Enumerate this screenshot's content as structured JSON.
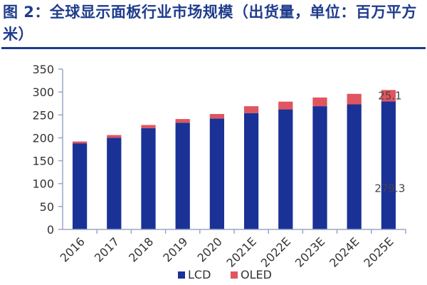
{
  "title": "图 2：全球显示面板行业市场规模（出货量，单位：百万平方米）",
  "colors": {
    "title": "#1f3c8c",
    "lcd": "#1a3196",
    "oled": "#e0555f",
    "axis": "#9aa6c8"
  },
  "chart_data": {
    "type": "bar",
    "stacked": true,
    "categories": [
      "2016",
      "2017",
      "2018",
      "2019",
      "2020",
      "2021E",
      "2022E",
      "2023E",
      "2024E",
      "2025E"
    ],
    "series": [
      {
        "name": "LCD",
        "values": [
          188,
          200,
          221,
          233,
          242,
          254,
          262,
          269,
          273,
          279.3
        ]
      },
      {
        "name": "OLED",
        "values": [
          4,
          6,
          7,
          8,
          10,
          15,
          17,
          19,
          23,
          25.1
        ]
      }
    ],
    "ylim": [
      0,
      350
    ],
    "yticks": [
      0,
      50,
      100,
      150,
      200,
      250,
      300,
      350
    ],
    "annotations": [
      {
        "text": "25.1",
        "category": "2025E",
        "series": "OLED"
      },
      {
        "text": "279.3",
        "category": "2025E",
        "series": "LCD"
      }
    ],
    "legend": {
      "position": "bottom",
      "items": [
        "LCD",
        "OLED"
      ]
    },
    "xlabel": "",
    "ylabel": ""
  }
}
